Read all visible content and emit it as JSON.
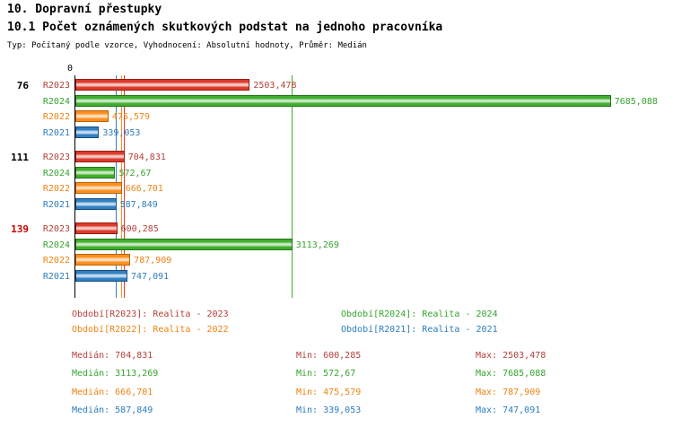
{
  "header": {
    "title": "10. Dopravní přestupky",
    "subtitle": "10.1 Počet oznámených skutkových podstat na jednoho pracovníka",
    "meta": "Typ: Počítaný podle vzorce, Vyhodnocení: Absolutní hodnoty, Průměr: Medián"
  },
  "chart_data": {
    "type": "bar",
    "orientation": "horizontal",
    "axis_origin_label": "0",
    "x_max": 8500,
    "grid": false,
    "series_colors": {
      "R2023": {
        "fill": "#dd3a2c",
        "border": "#971d12",
        "text": "#b4403a"
      },
      "R2024": {
        "fill": "#3fae2c",
        "border": "#23761b",
        "text": "#35a42e"
      },
      "R2022": {
        "fill": "#ff8f1f",
        "border": "#bb6300",
        "text": "#ef8312"
      },
      "R2021": {
        "fill": "#2f80c3",
        "border": "#1a4e7e",
        "text": "#2d7cbf"
      }
    },
    "groups": [
      {
        "label": "76",
        "label_color": "#000000",
        "bars": [
          {
            "series": "R2023",
            "value": 2503.478,
            "value_label": "2503,478"
          },
          {
            "series": "R2024",
            "value": 7685.088,
            "value_label": "7685,088"
          },
          {
            "series": "R2022",
            "value": 475.579,
            "value_label": "475,579"
          },
          {
            "series": "R2021",
            "value": 339.053,
            "value_label": "339,053"
          }
        ]
      },
      {
        "label": "111",
        "label_color": "#000000",
        "bars": [
          {
            "series": "R2023",
            "value": 704.831,
            "value_label": "704,831"
          },
          {
            "series": "R2024",
            "value": 572.67,
            "value_label": "572,67"
          },
          {
            "series": "R2022",
            "value": 666.701,
            "value_label": "666,701"
          },
          {
            "series": "R2021",
            "value": 587.849,
            "value_label": "587,849"
          }
        ]
      },
      {
        "label": "139",
        "label_color": "#cc0000",
        "bars": [
          {
            "series": "R2023",
            "value": 600.285,
            "value_label": "600,285"
          },
          {
            "series": "R2024",
            "value": 3113.269,
            "value_label": "3113,269"
          },
          {
            "series": "R2022",
            "value": 787.909,
            "value_label": "787,909"
          },
          {
            "series": "R2021",
            "value": 747.091,
            "value_label": "747,091"
          }
        ]
      }
    ],
    "median_lines": [
      {
        "series": "R2023",
        "value": 704.831
      },
      {
        "series": "R2024",
        "value": 3113.269
      },
      {
        "series": "R2022",
        "value": 666.701
      },
      {
        "series": "R2021",
        "value": 587.849
      }
    ],
    "legend": [
      {
        "label": "Období[R2023]: Realita - 2023",
        "color": "#b4403a"
      },
      {
        "label": "Období[R2024]: Realita - 2024",
        "color": "#35a42e"
      },
      {
        "label": "Období[R2022]: Realita - 2022",
        "color": "#ef8312"
      },
      {
        "label": "Období[R2021]: Realita - 2021",
        "color": "#2d7cbf"
      }
    ],
    "stats": [
      {
        "median": "Medián: 704,831",
        "min": "Min: 600,285",
        "max": "Max: 2503,478",
        "color": "#b4403a"
      },
      {
        "median": "Medián: 3113,269",
        "min": "Min: 572,67",
        "max": "Max: 7685,088",
        "color": "#35a42e"
      },
      {
        "median": "Medián: 666,701",
        "min": "Min: 475,579",
        "max": "Max: 787,909",
        "color": "#ef8312"
      },
      {
        "median": "Medián: 587,849",
        "min": "Min: 339,053",
        "max": "Max: 747,091",
        "color": "#2d7cbf"
      }
    ]
  }
}
